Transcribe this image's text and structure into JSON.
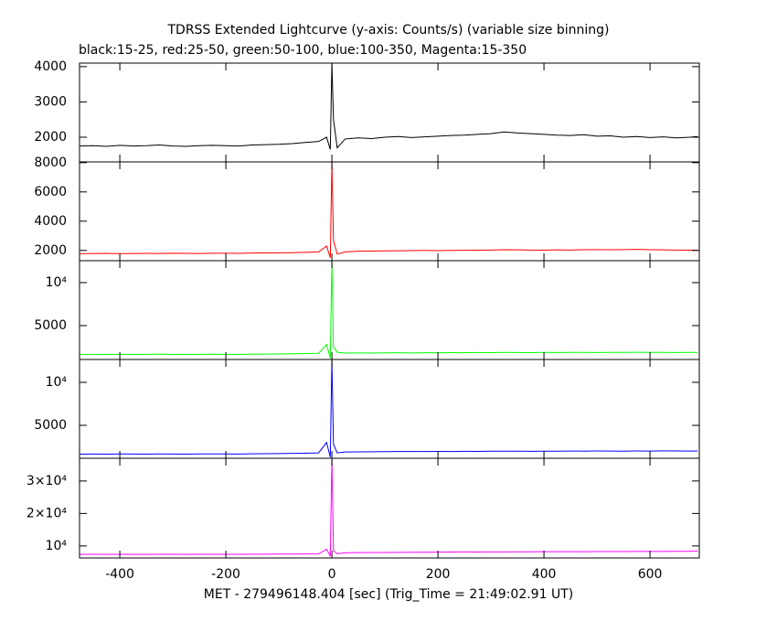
{
  "chart_data": [
    {
      "type": "line",
      "title": "TDRSS Extended Lightcurve (y-axis: Counts/s) (variable size binning)",
      "subtitle": "black:15-25, red:25-50, green:50-100, blue:100-350, Magenta:15-350",
      "xlim": [
        -476,
        693
      ],
      "ylim": [
        1300,
        4100
      ],
      "yticks": [
        2000,
        3000,
        4000
      ],
      "x": [
        -475,
        -450,
        -425,
        -400,
        -375,
        -350,
        -325,
        -300,
        -275,
        -250,
        -225,
        -200,
        -175,
        -150,
        -125,
        -100,
        -75,
        -50,
        -25,
        -10,
        -3,
        0,
        3,
        10,
        25,
        50,
        75,
        100,
        125,
        150,
        175,
        200,
        225,
        250,
        275,
        300,
        325,
        350,
        375,
        400,
        425,
        450,
        475,
        500,
        525,
        550,
        575,
        600,
        625,
        650,
        675,
        690
      ],
      "series": [
        {
          "color": "#000000",
          "values": [
            1750,
            1760,
            1740,
            1770,
            1750,
            1760,
            1780,
            1750,
            1740,
            1760,
            1770,
            1760,
            1750,
            1780,
            1790,
            1800,
            1820,
            1850,
            1880,
            2000,
            1650,
            4100,
            2500,
            1700,
            1950,
            1980,
            1960,
            2000,
            2020,
            1990,
            2010,
            2030,
            2050,
            2060,
            2080,
            2100,
            2150,
            2120,
            2100,
            2080,
            2060,
            2050,
            2070,
            2030,
            2040,
            2000,
            2020,
            1990,
            2010,
            1980,
            2000,
            2020
          ]
        }
      ]
    },
    {
      "type": "line",
      "xlim": [
        -476,
        693
      ],
      "ylim": [
        1300,
        8050
      ],
      "yticks": [
        2000,
        4000,
        6000,
        8000
      ],
      "x": [
        -475,
        -450,
        -425,
        -400,
        -375,
        -350,
        -325,
        -300,
        -275,
        -250,
        -225,
        -200,
        -175,
        -150,
        -125,
        -100,
        -75,
        -50,
        -25,
        -10,
        -3,
        0,
        3,
        10,
        25,
        50,
        75,
        100,
        125,
        150,
        175,
        200,
        225,
        250,
        275,
        300,
        325,
        350,
        375,
        400,
        425,
        450,
        475,
        500,
        525,
        550,
        575,
        600,
        625,
        650,
        675,
        690
      ],
      "series": [
        {
          "color": "#ff0000",
          "values": [
            1780,
            1790,
            1800,
            1785,
            1795,
            1800,
            1790,
            1810,
            1800,
            1795,
            1805,
            1810,
            1800,
            1820,
            1830,
            1840,
            1850,
            1870,
            1900,
            2300,
            1500,
            8000,
            2700,
            1750,
            1900,
            1950,
            1960,
            1970,
            1980,
            1990,
            2000,
            1990,
            2000,
            2010,
            2020,
            2030,
            2050,
            2040,
            2030,
            2020,
            2040,
            2030,
            2050,
            2060,
            2050,
            2060,
            2070,
            2050,
            2040,
            2030,
            2020,
            2010
          ]
        }
      ]
    },
    {
      "type": "line",
      "xlim": [
        -476,
        693
      ],
      "ylim": [
        1060,
        12550
      ],
      "yticks": [
        5000,
        {
          "value": 10000,
          "label": "10⁴"
        }
      ],
      "x": [
        -475,
        -450,
        -425,
        -400,
        -375,
        -350,
        -325,
        -300,
        -275,
        -250,
        -225,
        -200,
        -175,
        -150,
        -125,
        -100,
        -75,
        -50,
        -25,
        -10,
        -3,
        0,
        3,
        10,
        25,
        50,
        75,
        100,
        125,
        150,
        175,
        200,
        225,
        250,
        275,
        300,
        325,
        350,
        375,
        400,
        425,
        450,
        475,
        500,
        525,
        550,
        575,
        600,
        625,
        650,
        675,
        690
      ],
      "series": [
        {
          "color": "#00ff00",
          "values": [
            1650,
            1660,
            1640,
            1670,
            1650,
            1660,
            1680,
            1650,
            1640,
            1660,
            1670,
            1660,
            1650,
            1680,
            1690,
            1700,
            1720,
            1750,
            1780,
            2800,
            1200,
            12500,
            2500,
            1900,
            1800,
            1820,
            1810,
            1830,
            1840,
            1820,
            1850,
            1840,
            1860,
            1850,
            1870,
            1860,
            1880,
            1870,
            1860,
            1880,
            1870,
            1890,
            1880,
            1870,
            1890,
            1880,
            1900,
            1890,
            1880,
            1870,
            1890,
            1880
          ]
        }
      ]
    },
    {
      "type": "line",
      "xlim": [
        -476,
        693
      ],
      "ylim": [
        1170,
        12660
      ],
      "yticks": [
        5000,
        {
          "value": 10000,
          "label": "10⁴"
        }
      ],
      "x": [
        -475,
        -450,
        -425,
        -400,
        -375,
        -350,
        -325,
        -300,
        -275,
        -250,
        -225,
        -200,
        -175,
        -150,
        -125,
        -100,
        -75,
        -50,
        -25,
        -10,
        -3,
        0,
        3,
        10,
        25,
        50,
        75,
        100,
        125,
        150,
        175,
        200,
        225,
        250,
        275,
        300,
        325,
        350,
        375,
        400,
        425,
        450,
        475,
        500,
        525,
        550,
        575,
        600,
        625,
        650,
        675,
        690
      ],
      "series": [
        {
          "color": "#0000ff",
          "values": [
            1650,
            1660,
            1650,
            1670,
            1660,
            1650,
            1670,
            1660,
            1650,
            1670,
            1680,
            1670,
            1660,
            1690,
            1700,
            1720,
            1740,
            1760,
            1800,
            3000,
            1300,
            12600,
            2800,
            1800,
            1900,
            1920,
            1930,
            1940,
            1950,
            1960,
            1950,
            1970,
            1960,
            1980,
            1970,
            1990,
            2000,
            1990,
            1980,
            2000,
            1990,
            2010,
            2000,
            2020,
            2010,
            2000,
            2020,
            2010,
            2030,
            2020,
            2010,
            2020
          ]
        }
      ]
    },
    {
      "type": "line",
      "xlabel": "MET - 279496148.404 [sec] (Trig_Time = 21:49:02.91 UT)",
      "xlim": [
        -476,
        693
      ],
      "xticks": [
        -400,
        -200,
        0,
        200,
        400,
        600
      ],
      "ylim": [
        6300,
        37000
      ],
      "yticks": [
        {
          "value": 10000,
          "label": "10⁴"
        },
        {
          "value": 20000,
          "label": "2×10⁴"
        },
        {
          "value": 30000,
          "label": "3×10⁴"
        }
      ],
      "x": [
        -475,
        -450,
        -425,
        -400,
        -375,
        -350,
        -325,
        -300,
        -275,
        -250,
        -225,
        -200,
        -175,
        -150,
        -125,
        -100,
        -75,
        -50,
        -25,
        -10,
        -3,
        0,
        3,
        10,
        25,
        50,
        75,
        100,
        125,
        150,
        175,
        200,
        225,
        250,
        275,
        300,
        325,
        350,
        375,
        400,
        425,
        450,
        475,
        500,
        525,
        550,
        575,
        600,
        625,
        650,
        675,
        690
      ],
      "series": [
        {
          "color": "#ff00ff",
          "values": [
            7400,
            7420,
            7380,
            7410,
            7400,
            7390,
            7420,
            7410,
            7400,
            7430,
            7420,
            7410,
            7440,
            7450,
            7460,
            7480,
            7500,
            7520,
            7560,
            9000,
            6800,
            37000,
            8500,
            7600,
            7900,
            7950,
            7980,
            8000,
            8020,
            8050,
            8070,
            8100,
            8120,
            8150,
            8140,
            8170,
            8180,
            8200,
            8210,
            8220,
            8230,
            8250,
            8240,
            8260,
            8270,
            8280,
            8300,
            8290,
            8320,
            8340,
            8360,
            8400
          ]
        }
      ]
    }
  ]
}
